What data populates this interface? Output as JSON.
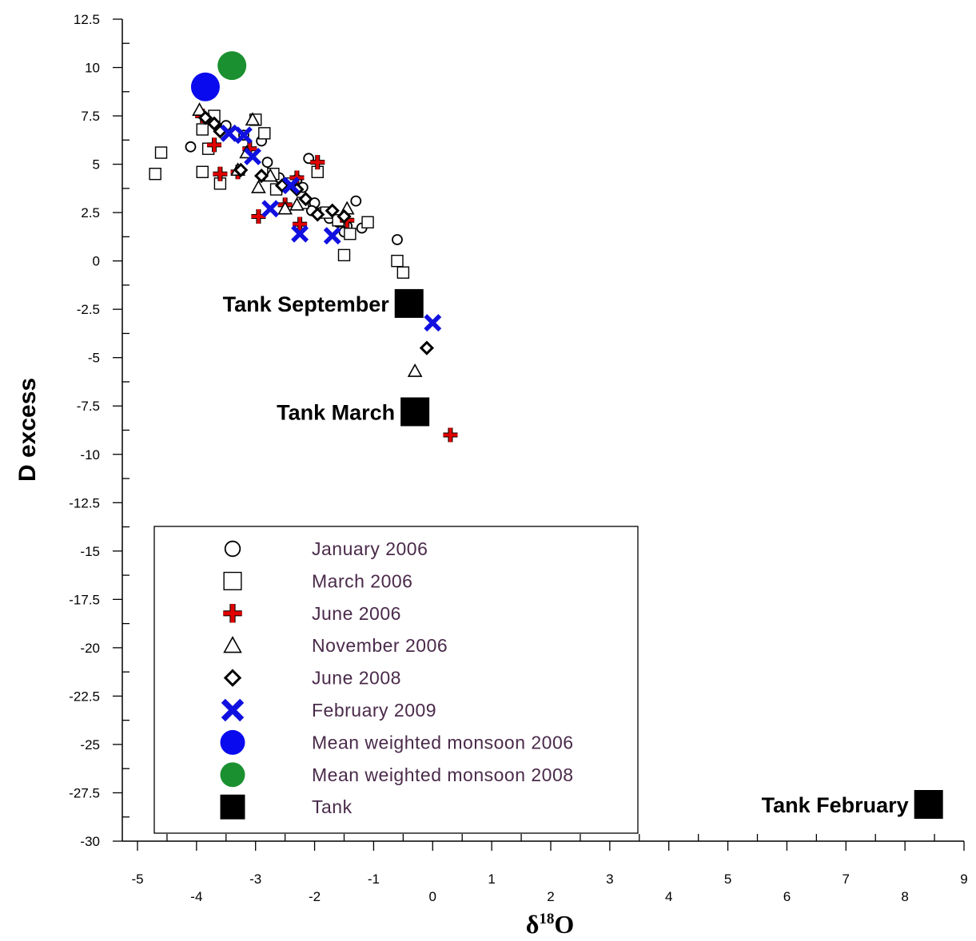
{
  "chart_data": {
    "type": "scatter",
    "xlabel_main": "δ",
    "xlabel_sup": "18",
    "xlabel_tail": "O",
    "ylabel": "D excess",
    "xlim": [
      -5,
      9
    ],
    "ylim": [
      -30,
      12.5
    ],
    "x_ticks": [
      -5,
      -4,
      -3,
      -2,
      -1,
      0,
      1,
      2,
      3,
      4,
      5,
      6,
      7,
      8,
      9
    ],
    "x_tick_labels": [
      "-5",
      "-4",
      "-3",
      "-2",
      "-1",
      "0",
      "1",
      "2",
      "3",
      "4",
      "5",
      "6",
      "7",
      "8",
      "9"
    ],
    "y_ticks": [
      12.5,
      10,
      7.5,
      5,
      2.5,
      0,
      -2.5,
      -5,
      -7.5,
      -10,
      -12.5,
      -15,
      -17.5,
      -20,
      -22.5,
      -25,
      -27.5,
      -30
    ],
    "y_tick_labels": [
      "12.5",
      "10",
      "7.5",
      "5",
      "2.5",
      "0",
      "-2.5",
      "-5",
      "-7.5",
      "-10",
      "-12.5",
      "-15",
      "-17.5",
      "-20",
      "-22.5",
      "-25",
      "-27.5",
      "-30"
    ],
    "grid": false,
    "legend_position": "lower-left",
    "series": [
      {
        "name": "January 2006",
        "marker": "circle-open",
        "color": "#000000",
        "points": [
          [
            -4.1,
            5.9
          ],
          [
            -3.7,
            7.5
          ],
          [
            -3.5,
            7.0
          ],
          [
            -3.2,
            6.5
          ],
          [
            -2.9,
            6.2
          ],
          [
            -2.8,
            5.1
          ],
          [
            -2.6,
            4.3
          ],
          [
            -2.5,
            4.0
          ],
          [
            -2.1,
            5.3
          ],
          [
            -2.3,
            4.2
          ],
          [
            -2.2,
            3.8
          ],
          [
            -2.0,
            3.0
          ],
          [
            -2.05,
            2.6
          ],
          [
            -1.9,
            2.5
          ],
          [
            -1.75,
            2.2
          ],
          [
            -1.6,
            2.0
          ],
          [
            -1.3,
            3.1
          ],
          [
            -1.45,
            1.8
          ],
          [
            -1.5,
            1.5
          ],
          [
            -1.2,
            1.7
          ],
          [
            -0.6,
            1.1
          ]
        ]
      },
      {
        "name": "March 2006",
        "marker": "square-open",
        "color": "#000000",
        "points": [
          [
            -4.7,
            4.5
          ],
          [
            -4.6,
            5.6
          ],
          [
            -3.9,
            4.6
          ],
          [
            -3.8,
            5.8
          ],
          [
            -3.9,
            6.8
          ],
          [
            -3.7,
            7.5
          ],
          [
            -3.6,
            4.0
          ],
          [
            -3.0,
            7.3
          ],
          [
            -2.85,
            6.6
          ],
          [
            -2.7,
            4.5
          ],
          [
            -2.65,
            3.7
          ],
          [
            -2.4,
            4.0
          ],
          [
            -2.2,
            3.0
          ],
          [
            -1.95,
            4.6
          ],
          [
            -1.8,
            2.5
          ],
          [
            -1.6,
            2.1
          ],
          [
            -1.4,
            1.4
          ],
          [
            -1.1,
            2.0
          ],
          [
            -1.5,
            0.3
          ],
          [
            -0.6,
            0.0
          ],
          [
            -0.5,
            -0.6
          ]
        ]
      },
      {
        "name": "June 2006",
        "marker": "plus",
        "color": "#e00000",
        "points": [
          [
            -3.9,
            7.5
          ],
          [
            -3.7,
            6.0
          ],
          [
            -3.6,
            4.5
          ],
          [
            -3.3,
            4.6
          ],
          [
            -3.1,
            5.8
          ],
          [
            -2.95,
            2.3
          ],
          [
            -2.5,
            2.9
          ],
          [
            -2.3,
            4.3
          ],
          [
            -2.25,
            1.9
          ],
          [
            -1.95,
            5.1
          ],
          [
            -1.45,
            2.1
          ],
          [
            0.3,
            -9.0
          ]
        ]
      },
      {
        "name": "November 2006",
        "marker": "triangle-open",
        "color": "#000000",
        "points": [
          [
            -3.95,
            7.8
          ],
          [
            -3.05,
            7.3
          ],
          [
            -3.15,
            5.6
          ],
          [
            -3.3,
            4.7
          ],
          [
            -2.95,
            3.8
          ],
          [
            -2.75,
            4.4
          ],
          [
            -2.5,
            2.7
          ],
          [
            -2.3,
            2.9
          ],
          [
            -1.45,
            2.7
          ],
          [
            -0.3,
            -5.7
          ]
        ]
      },
      {
        "name": "June 2008",
        "marker": "diamond-open",
        "color": "#000000",
        "points": [
          [
            -3.85,
            7.4
          ],
          [
            -3.7,
            7.1
          ],
          [
            -3.6,
            6.7
          ],
          [
            -3.25,
            4.7
          ],
          [
            -2.9,
            4.4
          ],
          [
            -2.55,
            3.9
          ],
          [
            -2.3,
            3.7
          ],
          [
            -2.15,
            3.2
          ],
          [
            -1.95,
            2.4
          ],
          [
            -1.7,
            2.6
          ],
          [
            -1.5,
            2.3
          ],
          [
            -0.1,
            -4.5
          ]
        ]
      },
      {
        "name": "February 2009",
        "marker": "x",
        "color": "#1010e0",
        "points": [
          [
            -3.45,
            6.6
          ],
          [
            -3.2,
            6.5
          ],
          [
            -3.05,
            5.4
          ],
          [
            -2.75,
            2.7
          ],
          [
            -2.4,
            3.9
          ],
          [
            -2.25,
            1.4
          ],
          [
            -1.7,
            1.3
          ],
          [
            0.0,
            -3.2
          ]
        ]
      },
      {
        "name": "Mean weighted monsoon 2006",
        "marker": "circle-filled",
        "color": "#0a0aee",
        "points": [
          [
            -3.85,
            9.0
          ]
        ]
      },
      {
        "name": "Mean weighted monsoon 2008",
        "marker": "circle-filled",
        "color": "#1a9030",
        "points": [
          [
            -3.4,
            10.1
          ]
        ]
      },
      {
        "name": "Tank",
        "marker": "square-filled",
        "color": "#000000",
        "points": [
          [
            -0.4,
            -2.2
          ],
          [
            -0.3,
            -7.8
          ],
          [
            8.4,
            -28.1
          ]
        ]
      }
    ],
    "annotations": [
      {
        "text": "Tank September",
        "x": -0.4,
        "y": -2.2
      },
      {
        "text": "Tank March",
        "x": -0.3,
        "y": -7.8
      },
      {
        "text": "Tank February",
        "x": 8.4,
        "y": -28.1
      }
    ]
  }
}
